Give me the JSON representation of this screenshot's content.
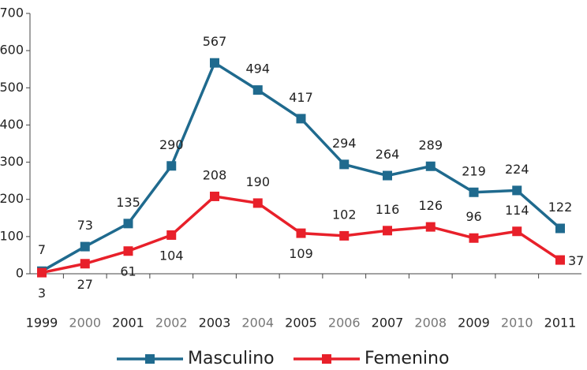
{
  "chart_data": {
    "type": "line",
    "categories": [
      "1999",
      "2000",
      "2001",
      "2002",
      "2003",
      "2004",
      "2005",
      "2006",
      "2007",
      "2008",
      "2009",
      "2010",
      "2011"
    ],
    "series": [
      {
        "name": "Masculino",
        "color": "#1f6a8e",
        "values": [
          7,
          73,
          135,
          290,
          567,
          494,
          417,
          294,
          264,
          289,
          219,
          224,
          122
        ]
      },
      {
        "name": "Femenino",
        "color": "#e8202a",
        "values": [
          3,
          27,
          61,
          104,
          208,
          190,
          109,
          102,
          116,
          126,
          96,
          114,
          37
        ]
      }
    ],
    "ylim": [
      0,
      700
    ],
    "yticks": [
      0,
      100,
      200,
      300,
      400,
      500,
      600,
      700
    ],
    "grid": false,
    "legend": "bottom"
  }
}
